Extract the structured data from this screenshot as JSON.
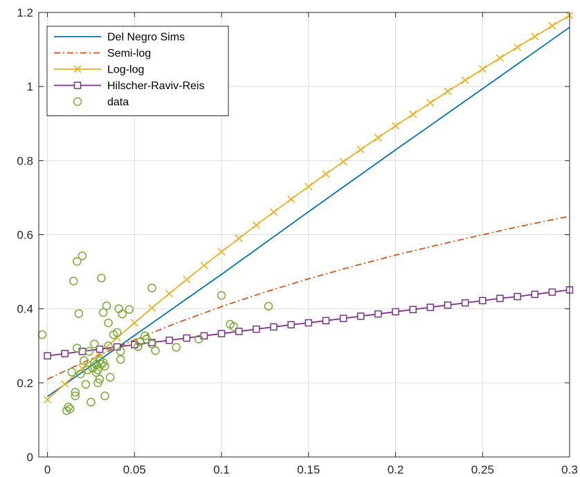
{
  "chart_data": {
    "type": "line",
    "title": "",
    "xlabel": "",
    "ylabel": "",
    "xlim": [
      -0.005,
      0.3
    ],
    "ylim": [
      0,
      1.2
    ],
    "xticks": [
      0,
      0.05,
      0.1,
      0.15,
      0.2,
      0.25,
      0.3
    ],
    "xtick_labels": [
      "0",
      "0.05",
      "0.1",
      "0.15",
      "0.2",
      "0.25",
      "0.3"
    ],
    "yticks": [
      0,
      0.2,
      0.4,
      0.6,
      0.8,
      1.0,
      1.2
    ],
    "ytick_labels": [
      "0",
      "0.2",
      "0.4",
      "0.6",
      "0.8",
      "1",
      "1.2"
    ],
    "grid": true,
    "legend_position": "top-left",
    "series": [
      {
        "name": "Del Negro Sims",
        "style": "solid",
        "marker": "none",
        "color": "#0072BD",
        "x": [
          0,
          0.05,
          0.1,
          0.15,
          0.2,
          0.25,
          0.3
        ],
        "y": [
          0.163,
          0.328,
          0.493,
          0.662,
          0.829,
          0.994,
          1.16
        ]
      },
      {
        "name": "Semi-log",
        "style": "dashdot",
        "marker": "none",
        "color": "#D95319",
        "x": [
          0,
          0.025,
          0.05,
          0.075,
          0.1,
          0.125,
          0.15,
          0.175,
          0.2,
          0.225,
          0.25,
          0.275,
          0.3
        ],
        "y": [
          0.21,
          0.265,
          0.316,
          0.363,
          0.406,
          0.445,
          0.481,
          0.514,
          0.545,
          0.573,
          0.6,
          0.626,
          0.65
        ]
      },
      {
        "name": "Log-log",
        "style": "solid",
        "marker": "x",
        "color": "#EDB120",
        "x": [
          0,
          0.01,
          0.02,
          0.03,
          0.04,
          0.05,
          0.06,
          0.07,
          0.08,
          0.09,
          0.1,
          0.11,
          0.12,
          0.13,
          0.14,
          0.15,
          0.16,
          0.17,
          0.18,
          0.19,
          0.2,
          0.21,
          0.22,
          0.23,
          0.24,
          0.25,
          0.26,
          0.27,
          0.28,
          0.29,
          0.3
        ],
        "y": [
          0.155,
          0.197,
          0.239,
          0.281,
          0.322,
          0.362,
          0.402,
          0.441,
          0.479,
          0.517,
          0.554,
          0.59,
          0.626,
          0.661,
          0.696,
          0.73,
          0.764,
          0.797,
          0.83,
          0.862,
          0.894,
          0.925,
          0.956,
          0.987,
          1.017,
          1.047,
          1.077,
          1.106,
          1.135,
          1.164,
          1.192
        ]
      },
      {
        "name": "Hilscher-Raviv-Reis",
        "style": "solid",
        "marker": "square",
        "color": "#7E2F8E",
        "x": [
          0,
          0.01,
          0.02,
          0.03,
          0.04,
          0.05,
          0.06,
          0.07,
          0.08,
          0.09,
          0.1,
          0.11,
          0.12,
          0.13,
          0.14,
          0.15,
          0.16,
          0.17,
          0.18,
          0.19,
          0.2,
          0.21,
          0.22,
          0.23,
          0.24,
          0.25,
          0.26,
          0.27,
          0.28,
          0.29,
          0.3
        ],
        "y": [
          0.273,
          0.279,
          0.285,
          0.291,
          0.297,
          0.303,
          0.309,
          0.315,
          0.321,
          0.327,
          0.333,
          0.339,
          0.345,
          0.351,
          0.357,
          0.362,
          0.368,
          0.374,
          0.38,
          0.386,
          0.392,
          0.398,
          0.404,
          0.41,
          0.416,
          0.422,
          0.428,
          0.433,
          0.439,
          0.445,
          0.451
        ]
      },
      {
        "name": "data",
        "style": "none",
        "marker": "circle",
        "color": "#77AC30",
        "x": [
          -0.003,
          0.011,
          0.012,
          0.013,
          0.014,
          0.015,
          0.016,
          0.016,
          0.017,
          0.017,
          0.018,
          0.019,
          0.02,
          0.021,
          0.022,
          0.023,
          0.024,
          0.025,
          0.026,
          0.027,
          0.027,
          0.028,
          0.028,
          0.029,
          0.029,
          0.03,
          0.03,
          0.031,
          0.031,
          0.032,
          0.032,
          0.033,
          0.033,
          0.034,
          0.035,
          0.035,
          0.036,
          0.038,
          0.04,
          0.041,
          0.042,
          0.042,
          0.043,
          0.047,
          0.052,
          0.053,
          0.056,
          0.057,
          0.06,
          0.06,
          0.062,
          0.074,
          0.087,
          0.1,
          0.105,
          0.107,
          0.127
        ],
        "y": [
          0.33,
          0.125,
          0.135,
          0.13,
          0.229,
          0.475,
          0.175,
          0.165,
          0.294,
          0.528,
          0.387,
          0.224,
          0.543,
          0.26,
          0.196,
          0.235,
          0.285,
          0.148,
          0.24,
          0.305,
          0.255,
          0.25,
          0.228,
          0.235,
          0.2,
          0.26,
          0.21,
          0.25,
          0.483,
          0.39,
          0.255,
          0.165,
          0.245,
          0.408,
          0.362,
          0.3,
          0.215,
          0.33,
          0.336,
          0.4,
          0.285,
          0.263,
          0.386,
          0.398,
          0.298,
          0.31,
          0.327,
          0.318,
          0.456,
          0.305,
          0.287,
          0.296,
          0.318,
          0.436,
          0.358,
          0.352,
          0.407
        ]
      }
    ]
  }
}
